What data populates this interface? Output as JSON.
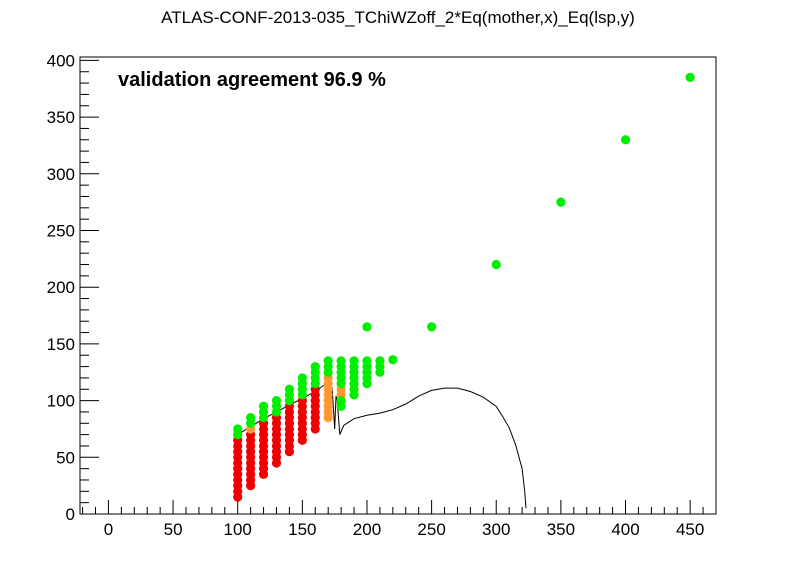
{
  "chart_data": {
    "type": "scatter",
    "title": "ATLAS-CONF-2013-035_TChiWZoff_2*Eq(mother,x)_Eq(lsp,y)",
    "annotation": "validation agreement 96.9 %",
    "xlabel": "",
    "ylabel": "",
    "xlim": [
      -22,
      470
    ],
    "ylim": [
      0,
      403
    ],
    "x_ticks": [
      0,
      50,
      100,
      150,
      200,
      250,
      300,
      350,
      400,
      450
    ],
    "y_ticks": [
      0,
      50,
      100,
      150,
      200,
      250,
      300,
      350,
      400
    ],
    "grid": false,
    "colors": {
      "green": "#00ee00",
      "red": "#ee0000",
      "orange": "#ff9933",
      "curve": "#000000"
    },
    "columns": [
      {
        "x": 100,
        "red": [
          15,
          20,
          25,
          30,
          35,
          40,
          45,
          50,
          55,
          60,
          65
        ],
        "orange": [],
        "green": [
          70,
          75
        ]
      },
      {
        "x": 110,
        "red": [
          25,
          30,
          35,
          40,
          45,
          50,
          55,
          60,
          65,
          70
        ],
        "orange": [
          75
        ],
        "green": [
          80,
          85
        ]
      },
      {
        "x": 120,
        "red": [
          35,
          40,
          45,
          50,
          55,
          60,
          65,
          70,
          75,
          80
        ],
        "orange": [],
        "green": [
          85,
          90,
          95
        ]
      },
      {
        "x": 130,
        "red": [
          45,
          50,
          55,
          60,
          65,
          70,
          75,
          80,
          85
        ],
        "orange": [],
        "green": [
          90,
          95,
          100
        ]
      },
      {
        "x": 140,
        "red": [
          55,
          60,
          65,
          70,
          75,
          80,
          85,
          90,
          95
        ],
        "orange": [],
        "green": [
          100,
          105,
          110
        ]
      },
      {
        "x": 150,
        "red": [
          65,
          70,
          75,
          80,
          85,
          90,
          95,
          100
        ],
        "orange": [],
        "green": [
          105,
          110,
          115,
          120
        ]
      },
      {
        "x": 160,
        "red": [
          75,
          80,
          85,
          90,
          95,
          100,
          105,
          110
        ],
        "orange": [],
        "green": [
          115,
          120,
          125,
          130
        ]
      },
      {
        "x": 170,
        "red": [],
        "orange": [
          85,
          90,
          95,
          100,
          105,
          110,
          115,
          120
        ],
        "green": [
          125,
          130,
          135
        ]
      },
      {
        "x": 180,
        "red": [],
        "orange": [
          105,
          110
        ],
        "green": [
          95,
          100,
          115,
          120,
          125,
          130,
          135
        ]
      },
      {
        "x": 190,
        "red": [],
        "orange": [],
        "green": [
          105,
          110,
          115,
          120,
          125,
          130,
          135
        ]
      },
      {
        "x": 200,
        "red": [],
        "orange": [],
        "green": [
          115,
          120,
          125,
          130,
          135,
          165
        ]
      },
      {
        "x": 210,
        "red": [],
        "orange": [],
        "green": [
          125,
          130,
          135
        ]
      },
      {
        "x": 220,
        "red": [],
        "orange": [],
        "green": [
          136
        ]
      },
      {
        "x": 250,
        "red": [],
        "orange": [],
        "green": [
          165
        ]
      },
      {
        "x": 300,
        "red": [],
        "orange": [],
        "green": [
          220
        ]
      },
      {
        "x": 350,
        "red": [],
        "orange": [],
        "green": [
          275
        ]
      },
      {
        "x": 400,
        "red": [],
        "orange": [],
        "green": [
          330
        ]
      },
      {
        "x": 450,
        "red": [],
        "orange": [],
        "green": [
          385
        ]
      }
    ],
    "exclusion_curve": [
      [
        100,
        70
      ],
      [
        110,
        77
      ],
      [
        120,
        84
      ],
      [
        130,
        90
      ],
      [
        140,
        96
      ],
      [
        150,
        102
      ],
      [
        160,
        108
      ],
      [
        166,
        113
      ],
      [
        170,
        115
      ],
      [
        172,
        90
      ],
      [
        173,
        112
      ],
      [
        175,
        75
      ],
      [
        176,
        104
      ],
      [
        177,
        100
      ],
      [
        179,
        70
      ],
      [
        182,
        78
      ],
      [
        190,
        84
      ],
      [
        200,
        87
      ],
      [
        210,
        89
      ],
      [
        220,
        92
      ],
      [
        230,
        97
      ],
      [
        240,
        104
      ],
      [
        250,
        109
      ],
      [
        260,
        111
      ],
      [
        270,
        111
      ],
      [
        280,
        108
      ],
      [
        290,
        103
      ],
      [
        300,
        95
      ],
      [
        305,
        86
      ],
      [
        310,
        76
      ],
      [
        315,
        61
      ],
      [
        320,
        40
      ],
      [
        322,
        20
      ],
      [
        323,
        5
      ]
    ]
  }
}
